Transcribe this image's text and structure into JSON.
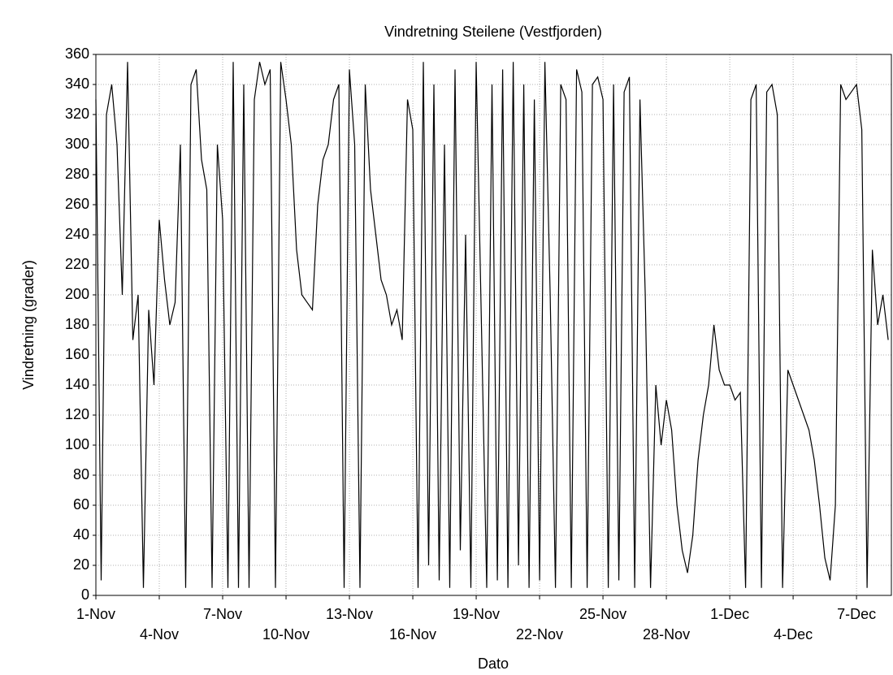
{
  "chart_data": {
    "type": "line",
    "title": "Vindretning Steilene (Vestfjorden)",
    "x_label": "Dato",
    "y_label": "Vindretning (grader)",
    "x": [
      0,
      0.25,
      0.5,
      0.75,
      1,
      1.25,
      1.5,
      1.75,
      2,
      2.25,
      2.5,
      2.75,
      3,
      3.25,
      3.5,
      3.75,
      4,
      4.25,
      4.5,
      4.75,
      5,
      5.25,
      5.5,
      5.75,
      6,
      6.25,
      6.5,
      6.75,
      7,
      7.25,
      7.5,
      7.75,
      8,
      8.25,
      8.5,
      8.75,
      9,
      9.25,
      9.5,
      9.75,
      10,
      10.25,
      10.5,
      10.75,
      11,
      11.25,
      11.5,
      11.75,
      12,
      12.25,
      12.5,
      12.75,
      13,
      13.25,
      13.5,
      13.75,
      14,
      14.25,
      14.5,
      14.75,
      15,
      15.25,
      15.5,
      15.75,
      16,
      16.25,
      16.5,
      16.75,
      17,
      17.25,
      17.5,
      17.75,
      18,
      18.25,
      18.5,
      18.75,
      19,
      19.25,
      19.5,
      19.75,
      20,
      20.25,
      20.5,
      20.75,
      21,
      21.25,
      21.5,
      21.75,
      22,
      22.25,
      22.5,
      22.75,
      23,
      23.25,
      23.5,
      23.75,
      24,
      24.25,
      24.5,
      24.75,
      25,
      25.25,
      25.5,
      25.75,
      26,
      26.25,
      26.5,
      26.75,
      27,
      27.25,
      27.5,
      27.75,
      28,
      28.25,
      28.5,
      28.75,
      29,
      29.25,
      29.5,
      29.75,
      30,
      30.25,
      30.5,
      30.75,
      31,
      31.25,
      31.5,
      31.75,
      32,
      32.25,
      32.5,
      32.75,
      33,
      33.25,
      33.5,
      33.75,
      34,
      34.25,
      34.5,
      34.75,
      35,
      35.25,
      35.5,
      35.75,
      36,
      36.25,
      36.5,
      36.75,
      37,
      37.25,
      37.5
    ],
    "series": [
      {
        "color": "#000000",
        "values": [
          330,
          10,
          320,
          340,
          300,
          200,
          355,
          170,
          200,
          5,
          190,
          140,
          250,
          210,
          180,
          195,
          300,
          5,
          340,
          350,
          290,
          270,
          5,
          300,
          250,
          5,
          355,
          5,
          340,
          5,
          330,
          355,
          340,
          350,
          5,
          355,
          330,
          300,
          230,
          200,
          195,
          190,
          260,
          290,
          300,
          330,
          340,
          5,
          350,
          300,
          5,
          340,
          270,
          240,
          210,
          200,
          180,
          190,
          170,
          330,
          310,
          5,
          355,
          20,
          340,
          10,
          300,
          5,
          350,
          30,
          240,
          5,
          355,
          180,
          5,
          340,
          10,
          350,
          5,
          355,
          20,
          340,
          5,
          330,
          10,
          355,
          200,
          5,
          340,
          330,
          5,
          350,
          335,
          5,
          340,
          345,
          330,
          5,
          340,
          10,
          335,
          345,
          5,
          330,
          200,
          5,
          140,
          100,
          130,
          110,
          60,
          30,
          15,
          40,
          90,
          120,
          140,
          180,
          150,
          140,
          140,
          130,
          135,
          5,
          330,
          340,
          5,
          335,
          340,
          320,
          5,
          150,
          140,
          130,
          120,
          110,
          90,
          60,
          25,
          10,
          60,
          340,
          330,
          335,
          340,
          310,
          5,
          230,
          180,
          200,
          170
        ]
      }
    ],
    "xlim": [
      0,
      37.65
    ],
    "xticks": [
      {
        "value": 0,
        "label": "1-Nov"
      },
      {
        "value": 3,
        "label": "4-Nov"
      },
      {
        "value": 6,
        "label": "7-Nov"
      },
      {
        "value": 9,
        "label": "10-Nov"
      },
      {
        "value": 12,
        "label": "13-Nov"
      },
      {
        "value": 15,
        "label": "16-Nov"
      },
      {
        "value": 18,
        "label": "19-Nov"
      },
      {
        "value": 21,
        "label": "22-Nov"
      },
      {
        "value": 24,
        "label": "25-Nov"
      },
      {
        "value": 27,
        "label": "28-Nov"
      },
      {
        "value": 30,
        "label": "1-Dec"
      },
      {
        "value": 33,
        "label": "4-Dec"
      },
      {
        "value": 36,
        "label": "7-Dec"
      }
    ],
    "ylim": [
      0,
      360
    ],
    "yticks": [
      0,
      20,
      40,
      60,
      80,
      100,
      120,
      140,
      160,
      180,
      200,
      220,
      240,
      260,
      280,
      300,
      320,
      340,
      360
    ],
    "grid": true
  }
}
